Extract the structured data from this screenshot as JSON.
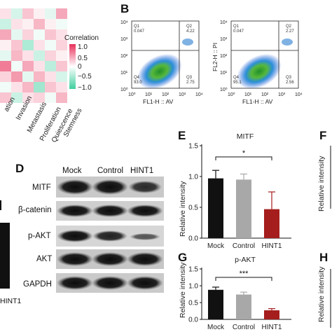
{
  "panels": {
    "B": "B",
    "D": "D",
    "E": "E",
    "F": "F",
    "G": "G",
    "H": "H"
  },
  "heatmap": {
    "legend_title": "Correlation",
    "legend_ticks": [
      "1.0",
      "0.5",
      "0",
      "−0.5",
      "−1.0"
    ],
    "x_labels": [
      "ation",
      "Invasion",
      "Metastasis",
      "Proliferation",
      "Quiescence",
      "Stemness"
    ],
    "colors": {
      "pos": "#e8305a",
      "neg": "#3fcf9e"
    }
  },
  "flow": {
    "plots": [
      {
        "q1": "Q1\n0.047",
        "q2": "Q2\n4.22",
        "q3": "Q3\n2.75",
        "q4": "Q4\n93.0"
      },
      {
        "q1": "Q1\n0.047",
        "q2": "Q2\n2.27",
        "q3": "Q3\n2.56",
        "q4": "Q4\n95.1"
      }
    ],
    "y_axis_label": "FL2-H :: PI",
    "x_axis_label": "FL1-H :: AV",
    "tick_labels": [
      "10⁰",
      "10¹",
      "10²",
      "10³",
      "10⁴"
    ]
  },
  "western": {
    "lanes": [
      "Mock",
      "Control",
      "HINT1"
    ],
    "rows": [
      "MITF",
      "β-catenin",
      "p-AKT",
      "AKT",
      "GAPDH"
    ]
  },
  "left_fragment": {
    "label": "HINT1"
  },
  "chart_data": [
    {
      "type": "bar",
      "panel": "E",
      "title": "MITF",
      "ylabel": "Relative intensity",
      "categories": [
        "Mock",
        "Control",
        "HINT1"
      ],
      "values": [
        0.97,
        0.95,
        0.47
      ],
      "errors": [
        0.13,
        0.09,
        0.28
      ],
      "ylim": [
        0,
        1.5
      ],
      "yticks": [
        "0.0",
        "0.5",
        "1.0",
        "1.5"
      ],
      "significance": "*",
      "colors": [
        "#111111",
        "#a8a8a8",
        "#a51d1d"
      ]
    },
    {
      "type": "bar",
      "panel": "G",
      "title": "p-AKT",
      "ylabel": "Relative intensity",
      "categories": [
        "Mock",
        "Control",
        "HINT1"
      ],
      "values": [
        0.88,
        0.74,
        0.27
      ],
      "errors": [
        0.08,
        0.07,
        0.05
      ],
      "ylim": [
        0,
        1.5
      ],
      "yticks": [
        "0.0",
        "0.5",
        "1.0",
        "1.5"
      ],
      "significance": "***",
      "colors": [
        "#111111",
        "#a8a8a8",
        "#a51d1d"
      ]
    }
  ]
}
